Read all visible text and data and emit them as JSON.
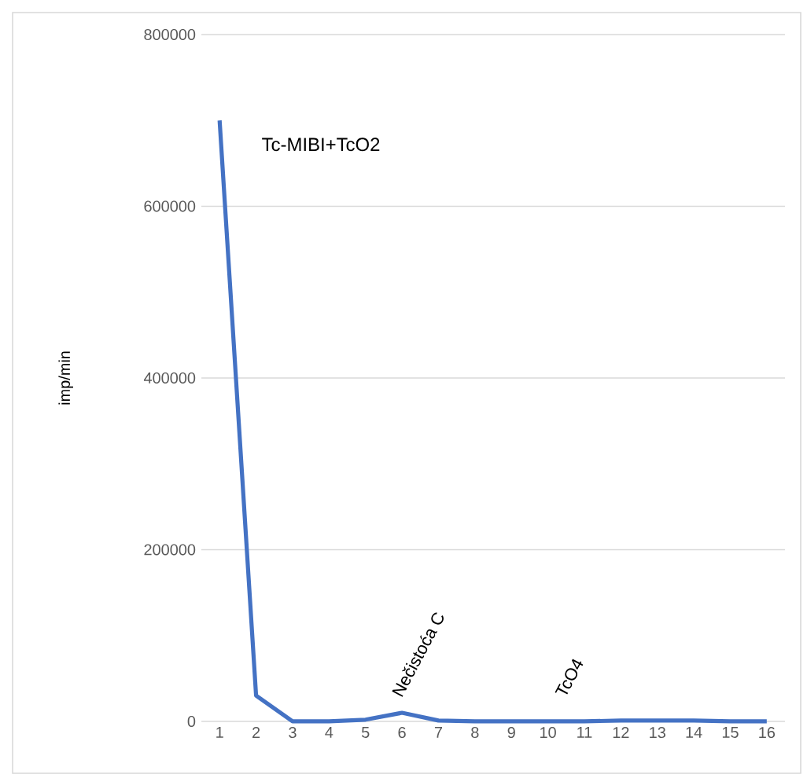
{
  "chart_data": {
    "type": "line",
    "ylabel": "imp/min",
    "categories": [
      "1",
      "2",
      "3",
      "4",
      "5",
      "6",
      "7",
      "8",
      "9",
      "10",
      "11",
      "12",
      "13",
      "14",
      "15",
      "16"
    ],
    "series": [
      {
        "color": "#4472c4",
        "values": [
          700000,
          30000,
          0,
          0,
          2000,
          10000,
          1000,
          0,
          0,
          0,
          0,
          1000,
          1000,
          1000,
          0,
          0
        ]
      }
    ],
    "ylim": [
      0,
      800000
    ],
    "yticks": [
      0,
      200000,
      400000,
      600000,
      800000
    ],
    "grid": "y",
    "marker": "none",
    "line_style": "solid",
    "annotations": [
      "Tc-MIBI+TcO2",
      "Nečistoća C",
      "TcO4"
    ]
  }
}
